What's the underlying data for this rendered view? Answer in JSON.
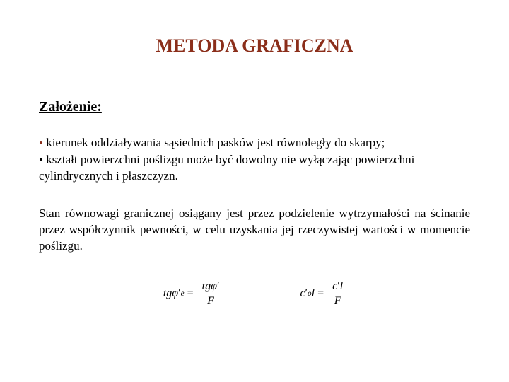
{
  "title": {
    "text": "METODA GRAFICZNA",
    "color": "#8b2e1a",
    "fontsize": 26
  },
  "section": {
    "heading": "Założenie:",
    "heading_fontsize": 20,
    "heading_color": "#000000"
  },
  "bullets": {
    "color": "#000000",
    "fontsize": 17,
    "dot_color": "#8b2e1a",
    "items": [
      "kierunek oddziaływania sąsiednich pasków jest równoległy do skarpy;",
      "kształt powierzchni poślizgu może być dowolny nie wyłączając powierzchni cylindrycznych i płaszczyzn."
    ]
  },
  "paragraph": {
    "text": "Stan równowagi granicznej osiągany jest przez podzielenie wytrzymałości na ścinanie przez współczynnik pewności, w celu uzyskania jej rzeczywistej wartości w momencie poślizgu.",
    "fontsize": 17,
    "color": "#000000"
  },
  "formulas": {
    "fontsize": 16,
    "left": {
      "lhs_pre": "tg",
      "lhs_var": "φ",
      "lhs_sub": "e",
      "num_pre": "tg",
      "num_var": "φ",
      "den": "F"
    },
    "right": {
      "lhs_var": "c",
      "lhs_sub": "o",
      "lhs_post": "l",
      "num_var": "c",
      "num_post": "l",
      "den": "F"
    }
  }
}
